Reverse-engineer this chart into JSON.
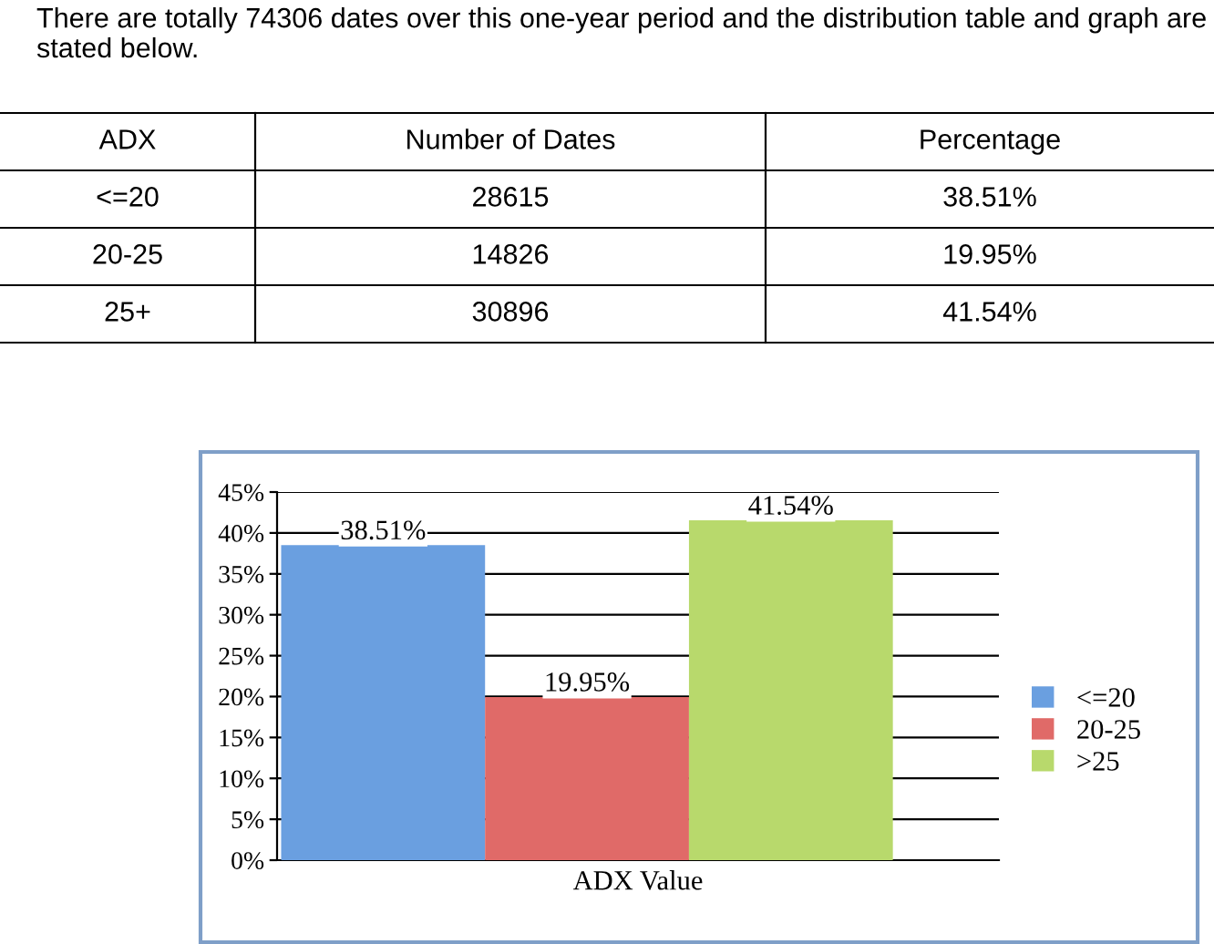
{
  "chart_data": [
    {
      "type": "other",
      "annotations": [
        "There are totally 74306 dates over this one-year period and the distribution table and graph are stated below.",
        "ADX",
        "Number of Dates",
        "Percentage",
        "<=20",
        "28615",
        "38.51%",
        "20-25",
        "14826",
        "19.95%",
        "25+",
        "30896",
        "41.54%"
      ]
    },
    {
      "type": "bar",
      "xlabel": "ADX Value",
      "categories": [
        null
      ],
      "series": [
        {
          "name": "<=20",
          "color": "#6a9fe0",
          "values": [
            38.51
          ]
        },
        {
          "name": "20-25",
          "color": "#e06a68",
          "values": [
            19.95
          ]
        },
        {
          "name": ">25",
          "color": "#b8d96c",
          "values": [
            41.54
          ]
        }
      ],
      "ylim": [
        0,
        45
      ],
      "yticks": [
        {
          "value": 0,
          "label": "0%"
        },
        {
          "value": 5,
          "label": "5%"
        },
        {
          "value": 10,
          "label": "10%"
        },
        {
          "value": 15,
          "label": "15%"
        },
        {
          "value": 20,
          "label": "20%"
        },
        {
          "value": 25,
          "label": "25%"
        },
        {
          "value": 30,
          "label": "30%"
        },
        {
          "value": 35,
          "label": "35%"
        },
        {
          "value": 40,
          "label": "40%"
        },
        {
          "value": 45,
          "label": "45%"
        }
      ],
      "value_labels": [
        "38.51%",
        "19.95%",
        "41.54%"
      ],
      "grid": "y",
      "legend": "right"
    }
  ]
}
